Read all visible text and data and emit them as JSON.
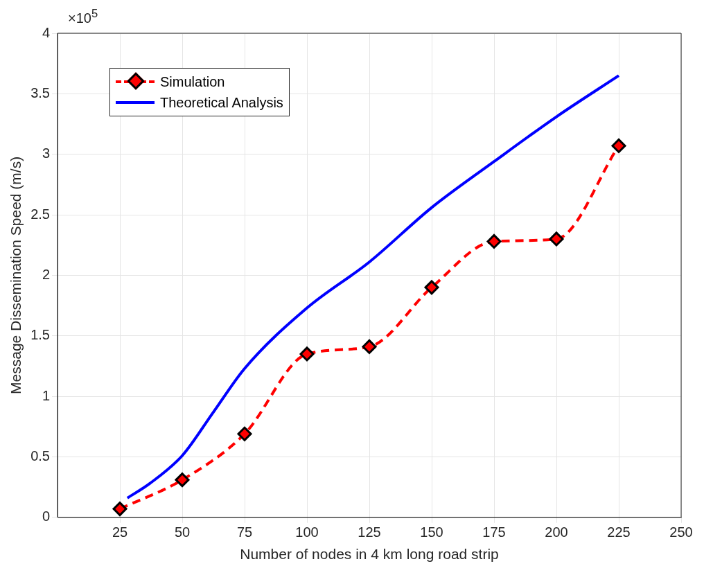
{
  "chart_data": {
    "type": "line",
    "xlabel": "Number of nodes in 4 km long road strip",
    "ylabel": "Message Dissemination Speed (m/s)",
    "annotations": [
      "×10$^{5}$"
    ],
    "xlim": [
      0,
      250
    ],
    "xticks": [
      25,
      50,
      75,
      100,
      125,
      150,
      175,
      200,
      225,
      250
    ],
    "ylim": [
      0,
      4
    ],
    "yticks": [
      0,
      0.5,
      1,
      1.5,
      2,
      2.5,
      3,
      3.5,
      4
    ],
    "grid": true,
    "legend": "top left",
    "series": [
      {
        "name": "Simulation",
        "color": "#ff0000",
        "marker": "diamond",
        "line_style": "dashed",
        "x": [
          25,
          50,
          75,
          100,
          125,
          150,
          175,
          200,
          225
        ],
        "values": [
          0.07,
          0.31,
          0.69,
          1.35,
          1.41,
          1.9,
          2.28,
          2.3,
          3.07
        ]
      },
      {
        "name": "Theoretical Analysis",
        "color": "#0000ff",
        "marker": "none",
        "line_style": "solid",
        "x": [
          28,
          37,
          50,
          62.5,
          75,
          100,
          125,
          150,
          175,
          200,
          225
        ],
        "values": [
          0.16,
          0.28,
          0.51,
          0.87,
          1.23,
          1.73,
          2.11,
          2.56,
          2.94,
          3.31,
          3.65
        ]
      }
    ]
  }
}
